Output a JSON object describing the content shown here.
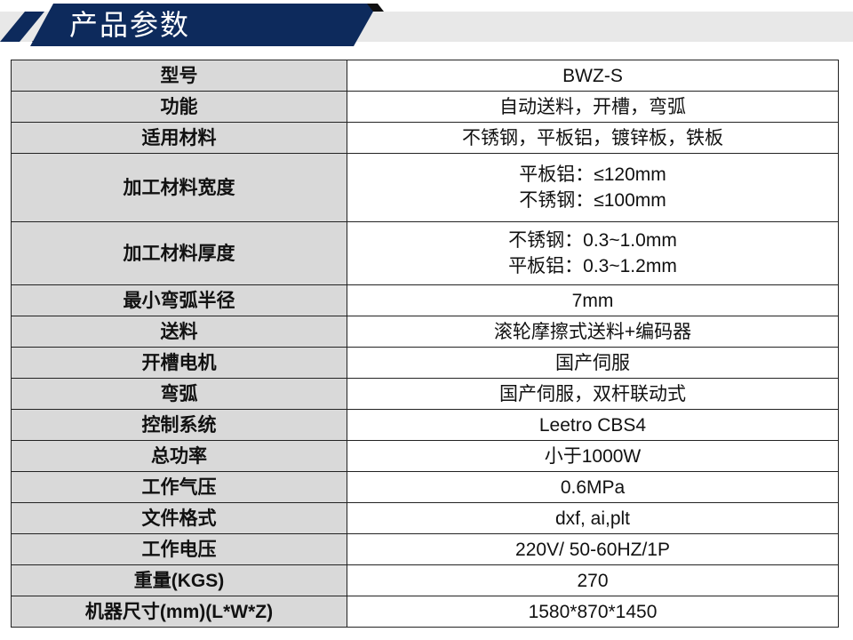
{
  "header": {
    "title": "产品参数",
    "accent": "#0d2a5c"
  },
  "rows": [
    {
      "label": "型号",
      "value": "BWZ-S"
    },
    {
      "label": "功能",
      "value": "自动送料，开槽，弯弧"
    },
    {
      "label": "适用材料",
      "value": "不锈钢，平板铝，镀锌板，铁板"
    },
    {
      "label": "加工材料宽度",
      "value": "平板铝：≤120mm",
      "value2": "不锈钢：≤100mm"
    },
    {
      "label": "加工材料厚度",
      "value": "不锈钢：0.3~1.0mm",
      "value2": "平板铝：0.3~1.2mm"
    },
    {
      "label": "最小弯弧半径",
      "value": "7mm"
    },
    {
      "label": "送料",
      "value": "滚轮摩擦式送料+编码器"
    },
    {
      "label": "开槽电机",
      "value": "国产伺服"
    },
    {
      "label": "弯弧",
      "value": "国产伺服，双杆联动式"
    },
    {
      "label": "控制系统",
      "value": "Leetro CBS4"
    },
    {
      "label": "总功率",
      "value": "小于1000W"
    },
    {
      "label": "工作气压",
      "value": "0.6MPa"
    },
    {
      "label": "文件格式",
      "value": "dxf, ai,plt"
    },
    {
      "label": "工作电压",
      "value": "220V/ 50-60HZ/1P"
    },
    {
      "label": "重量(KGS)",
      "value": "270"
    },
    {
      "label": "机器尺寸(mm)(L*W*Z)",
      "value": "1580*870*1450"
    }
  ]
}
